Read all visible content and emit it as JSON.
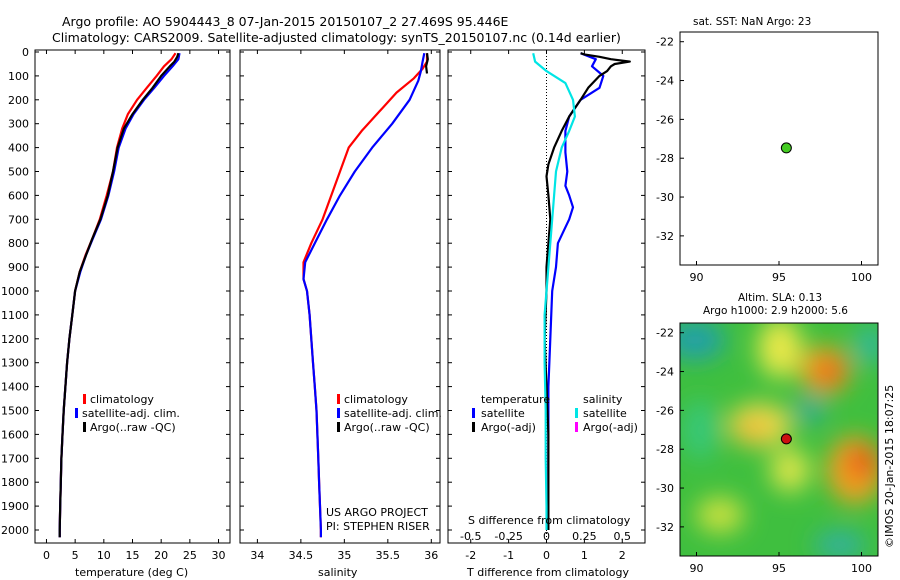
{
  "title": {
    "line1": "Argo profile: AO 5904443_8 07-Jan-2015 20150107_2 27.469S 95.446E",
    "line2": "Climatology: CARS2009. Satellite-adjusted climatology: synTS_20150107.nc (0.14d earlier)"
  },
  "depth_ticks": [
    "0",
    "100",
    "200",
    "300",
    "400",
    "500",
    "600",
    "700",
    "800",
    "900",
    "1000",
    "1100",
    "1200",
    "1300",
    "1400",
    "1500",
    "1600",
    "1700",
    "1800",
    "1900",
    "2000"
  ],
  "colors": {
    "climatology": "#ff0000",
    "satellite": "#0000ff",
    "argo": "#000000",
    "sal_satellite": "#00e5e5",
    "sal_argo": "#ff00ff"
  },
  "chart_data": [
    {
      "type": "line",
      "xlabel": "temperature (deg C)",
      "xlim": [
        -2,
        32
      ],
      "ylim": [
        2060,
        -10
      ],
      "grid": false,
      "x_ticks": [
        "0",
        "5",
        "10",
        "15",
        "20",
        "25",
        "30"
      ],
      "legend": [
        {
          "label": "climatology",
          "color": "#ff0000"
        },
        {
          "label": "satellite-adj. clim.",
          "color": "#0000ff"
        },
        {
          "label": "Argo(..raw -QC)",
          "color": "#000000"
        }
      ],
      "series": [
        {
          "key": "clim",
          "color": "#ff0000",
          "points": [
            [
              22.5,
              5
            ],
            [
              21.8,
              30
            ],
            [
              20.5,
              60
            ],
            [
              19.2,
              100
            ],
            [
              17.5,
              150
            ],
            [
              15.8,
              200
            ],
            [
              14.2,
              260
            ],
            [
              13.2,
              320
            ],
            [
              12.3,
              400
            ],
            [
              11.6,
              500
            ],
            [
              10.5,
              600
            ],
            [
              9.3,
              700
            ],
            [
              8.0,
              780
            ],
            [
              6.8,
              850
            ],
            [
              5.8,
              920
            ],
            [
              5.0,
              1000
            ],
            [
              4.5,
              1100
            ],
            [
              4.0,
              1200
            ],
            [
              3.6,
              1300
            ],
            [
              3.3,
              1400
            ],
            [
              3.0,
              1500
            ],
            [
              2.8,
              1600
            ],
            [
              2.6,
              1700
            ],
            [
              2.5,
              1800
            ],
            [
              2.4,
              1900
            ],
            [
              2.3,
              2000
            ],
            [
              2.3,
              2030
            ]
          ]
        },
        {
          "key": "sat",
          "color": "#0000ff",
          "points": [
            [
              23.2,
              5
            ],
            [
              23.0,
              30
            ],
            [
              22.0,
              60
            ],
            [
              20.5,
              100
            ],
            [
              18.8,
              150
            ],
            [
              17.0,
              200
            ],
            [
              15.2,
              260
            ],
            [
              13.8,
              320
            ],
            [
              12.6,
              400
            ],
            [
              11.8,
              500
            ],
            [
              10.8,
              600
            ],
            [
              9.5,
              700
            ],
            [
              8.1,
              780
            ],
            [
              6.9,
              850
            ],
            [
              5.9,
              920
            ],
            [
              5.0,
              1000
            ],
            [
              4.5,
              1100
            ],
            [
              4.0,
              1200
            ],
            [
              3.6,
              1300
            ],
            [
              3.3,
              1400
            ],
            [
              3.0,
              1500
            ],
            [
              2.8,
              1600
            ],
            [
              2.6,
              1700
            ],
            [
              2.5,
              1800
            ],
            [
              2.4,
              1900
            ],
            [
              2.3,
              2000
            ],
            [
              2.3,
              2030
            ]
          ]
        },
        {
          "key": "argo",
          "color": "#000000",
          "points": [
            [
              23.0,
              5
            ],
            [
              22.8,
              20
            ],
            [
              22.3,
              40
            ],
            [
              21.5,
              60
            ],
            [
              20.0,
              100
            ],
            [
              18.5,
              150
            ],
            [
              16.8,
              200
            ],
            [
              15.0,
              260
            ],
            [
              13.5,
              320
            ],
            [
              12.4,
              400
            ],
            [
              11.6,
              500
            ],
            [
              10.7,
              600
            ],
            [
              9.4,
              700
            ],
            [
              8.0,
              780
            ],
            [
              6.9,
              850
            ],
            [
              5.8,
              920
            ],
            [
              5.0,
              1000
            ],
            [
              4.5,
              1100
            ],
            [
              4.0,
              1200
            ],
            [
              3.6,
              1300
            ],
            [
              3.3,
              1400
            ],
            [
              3.0,
              1500
            ],
            [
              2.8,
              1600
            ],
            [
              2.6,
              1700
            ],
            [
              2.5,
              1800
            ],
            [
              2.4,
              1900
            ],
            [
              2.3,
              2000
            ],
            [
              2.3,
              2030
            ]
          ]
        }
      ]
    },
    {
      "type": "line",
      "xlabel": "salinity",
      "xlim": [
        33.8,
        36.1
      ],
      "ylim": [
        2060,
        -10
      ],
      "grid": false,
      "x_ticks": [
        "34",
        "34.5",
        "35",
        "35.5",
        "36"
      ],
      "legend": [
        {
          "label": "climatology",
          "color": "#ff0000"
        },
        {
          "label": "satellite-adj. clim.",
          "color": "#0000ff"
        },
        {
          "label": "Argo(..raw -QC)",
          "color": "#000000"
        }
      ],
      "annotations": [
        "US ARGO PROJECT",
        "PI: STEPHEN RISER"
      ],
      "series": [
        {
          "key": "clim",
          "color": "#ff0000",
          "points": [
            [
              35.95,
              5
            ],
            [
              35.95,
              40
            ],
            [
              35.9,
              70
            ],
            [
              35.8,
              110
            ],
            [
              35.6,
              170
            ],
            [
              35.4,
              250
            ],
            [
              35.2,
              330
            ],
            [
              35.05,
              400
            ],
            [
              34.95,
              500
            ],
            [
              34.85,
              600
            ],
            [
              34.75,
              700
            ],
            [
              34.62,
              800
            ],
            [
              34.53,
              880
            ],
            [
              34.53,
              950
            ],
            [
              34.57,
              1000
            ],
            [
              34.6,
              1100
            ],
            [
              34.62,
              1200
            ],
            [
              34.64,
              1300
            ],
            [
              34.66,
              1400
            ],
            [
              34.68,
              1500
            ],
            [
              34.69,
              1600
            ],
            [
              34.7,
              1700
            ],
            [
              34.71,
              1800
            ],
            [
              34.72,
              1900
            ],
            [
              34.73,
              2000
            ],
            [
              34.73,
              2030
            ]
          ]
        },
        {
          "key": "sat",
          "color": "#0000ff",
          "points": [
            [
              35.92,
              5
            ],
            [
              35.9,
              40
            ],
            [
              35.88,
              80
            ],
            [
              35.85,
              120
            ],
            [
              35.75,
              200
            ],
            [
              35.55,
              300
            ],
            [
              35.32,
              400
            ],
            [
              35.12,
              500
            ],
            [
              34.95,
              600
            ],
            [
              34.8,
              700
            ],
            [
              34.66,
              800
            ],
            [
              34.55,
              880
            ],
            [
              34.53,
              950
            ],
            [
              34.57,
              1000
            ],
            [
              34.6,
              1100
            ],
            [
              34.62,
              1200
            ],
            [
              34.64,
              1300
            ],
            [
              34.66,
              1400
            ],
            [
              34.68,
              1500
            ],
            [
              34.69,
              1600
            ],
            [
              34.7,
              1700
            ],
            [
              34.71,
              1800
            ],
            [
              34.72,
              1900
            ],
            [
              34.73,
              2000
            ],
            [
              34.73,
              2030
            ]
          ]
        },
        {
          "key": "argo",
          "color": "#000000",
          "points": [
            [
              35.95,
              5
            ],
            [
              35.96,
              30
            ],
            [
              35.94,
              60
            ],
            [
              35.95,
              90
            ]
          ]
        }
      ]
    },
    {
      "type": "line",
      "xlabel": "T difference from climatology",
      "x2label": "S difference from climatology",
      "xlim": [
        -2.6,
        2.6
      ],
      "ylim": [
        2060,
        -10
      ],
      "grid": false,
      "x_ticks": [
        "-2",
        "-1",
        "0",
        "1",
        "2"
      ],
      "x2_ticks": [
        "-0.5",
        "-0.25",
        "0",
        "0.25",
        "0.5"
      ],
      "zero_line": "dotted",
      "legend": [
        {
          "group": "temperature",
          "label": "satellite",
          "color": "#0000ff"
        },
        {
          "group": "temperature",
          "label": "Argo(-adj)",
          "color": "#000000"
        },
        {
          "group": "salinity",
          "label": "satellite",
          "color": "#00e5e5"
        },
        {
          "group": "salinity",
          "label": "Argo(-adj)",
          "color": "#ff00ff"
        }
      ],
      "series": [
        {
          "key": "t_sat",
          "color": "#0000ff",
          "points": [
            [
              0.9,
              5
            ],
            [
              1.3,
              30
            ],
            [
              1.2,
              60
            ],
            [
              1.5,
              100
            ],
            [
              1.4,
              150
            ],
            [
              0.9,
              200
            ],
            [
              0.6,
              270
            ],
            [
              0.5,
              330
            ],
            [
              0.5,
              420
            ],
            [
              0.55,
              500
            ],
            [
              0.5,
              560
            ],
            [
              0.6,
              600
            ],
            [
              0.7,
              650
            ],
            [
              0.6,
              700
            ],
            [
              0.45,
              750
            ],
            [
              0.3,
              800
            ],
            [
              0.25,
              900
            ],
            [
              0.15,
              1000
            ],
            [
              0.1,
              1200
            ],
            [
              0.05,
              1400
            ],
            [
              0.05,
              1600
            ],
            [
              0.05,
              1800
            ],
            [
              0.05,
              2000
            ]
          ]
        },
        {
          "key": "t_argo",
          "color": "#000000",
          "points": [
            [
              0.9,
              5
            ],
            [
              1.0,
              10
            ],
            [
              1.4,
              20
            ],
            [
              1.7,
              30
            ],
            [
              2.2,
              40
            ],
            [
              1.8,
              50
            ],
            [
              1.7,
              60
            ],
            [
              1.6,
              80
            ],
            [
              1.4,
              100
            ],
            [
              1.1,
              150
            ],
            [
              0.9,
              200
            ],
            [
              0.6,
              270
            ],
            [
              0.4,
              330
            ],
            [
              0.2,
              400
            ],
            [
              0.05,
              470
            ],
            [
              0.0,
              520
            ],
            [
              0.05,
              600
            ],
            [
              0.1,
              700
            ],
            [
              0.05,
              800
            ],
            [
              0.0,
              900
            ],
            [
              0.0,
              1000
            ],
            [
              -0.05,
              1200
            ],
            [
              0.0,
              1400
            ],
            [
              0.05,
              1600
            ],
            [
              0.05,
              1800
            ],
            [
              0.05,
              2000
            ]
          ]
        },
        {
          "key": "s_sat",
          "color": "#00e5e5",
          "points": [
            [
              -0.35,
              5
            ],
            [
              -0.3,
              40
            ],
            [
              0.0,
              80
            ],
            [
              0.5,
              130
            ],
            [
              0.7,
              200
            ],
            [
              0.75,
              270
            ],
            [
              0.6,
              330
            ],
            [
              0.4,
              400
            ],
            [
              0.25,
              500
            ],
            [
              0.2,
              600
            ],
            [
              0.15,
              700
            ],
            [
              0.1,
              800
            ],
            [
              0.05,
              900
            ],
            [
              0.0,
              1000
            ],
            [
              -0.05,
              1100
            ],
            [
              -0.05,
              1200
            ],
            [
              -0.05,
              1300
            ],
            [
              -0.02,
              1500
            ],
            [
              -0.02,
              1700
            ],
            [
              0.0,
              1900
            ],
            [
              0.0,
              2000
            ]
          ]
        }
      ]
    }
  ],
  "maps": {
    "sst": {
      "title": "sat. SST: NaN Argo: 23",
      "x_ticks": [
        "90",
        "95",
        "100"
      ],
      "y_ticks": [
        "-22",
        "-24",
        "-26",
        "-28",
        "-30",
        "-32"
      ],
      "xlim": [
        89,
        101
      ],
      "ylim": [
        -21.5,
        -33.5
      ],
      "marker": {
        "lon": 95.446,
        "lat": -27.469,
        "color": "#44cc22"
      }
    },
    "sla": {
      "title1": "Altim. SLA: 0.13",
      "title2": "Argo h1000: 2.9 h2000: 5.6",
      "x_ticks": [
        "90",
        "95",
        "100"
      ],
      "y_ticks": [
        "-22",
        "-24",
        "-26",
        "-28",
        "-30",
        "-32"
      ],
      "xlim": [
        89,
        101
      ],
      "ylim": [
        -21.5,
        -33.5
      ],
      "marker": {
        "lon": 95.446,
        "lat": -27.469,
        "color": "#cc1111"
      }
    }
  },
  "side_stamp": "©IMOS 20-Jan-2015 18:07:25"
}
